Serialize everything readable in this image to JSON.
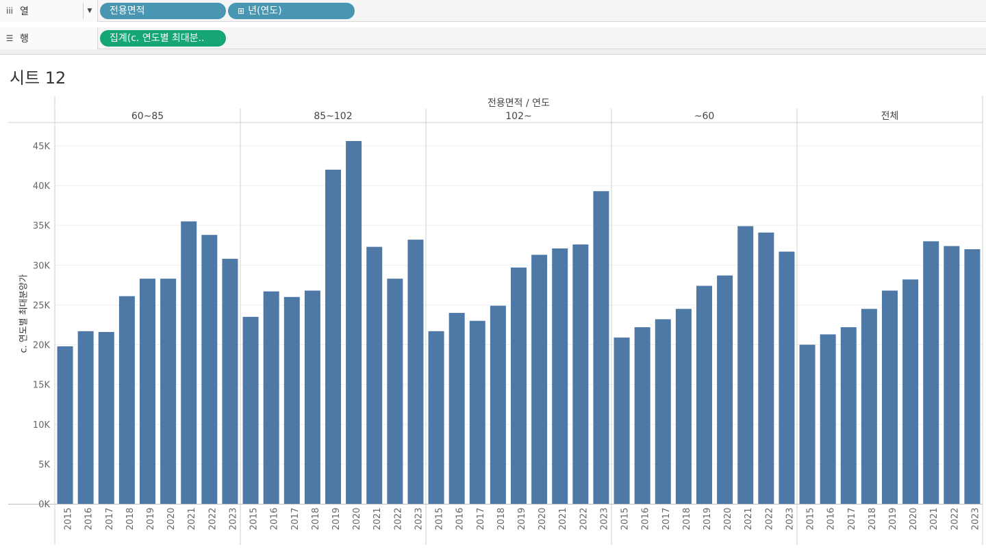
{
  "shelves": {
    "columns": {
      "label": "열",
      "icon": "columns-icon",
      "pills": [
        "전용면적",
        "년(연도)"
      ]
    },
    "rows": {
      "label": "행",
      "icon": "rows-list-icon",
      "pills": [
        "집계(c. 연도별 최대분.."
      ]
    }
  },
  "sheet_title": "시트 12",
  "colors": {
    "bar": "#4e79a7",
    "pill_dimension": "#4996b2",
    "pill_measure": "#16a576"
  },
  "chart_data": {
    "type": "bar",
    "title": "시트 12",
    "column_header": "전용면적 / 연도",
    "ylabel": "c. 연도별 최대분양가",
    "ylim": [
      0,
      47500
    ],
    "yticks": [
      0,
      5000,
      10000,
      15000,
      20000,
      25000,
      30000,
      35000,
      40000,
      45000
    ],
    "ytick_labels": [
      "0K",
      "5K",
      "10K",
      "15K",
      "20K",
      "25K",
      "30K",
      "35K",
      "40K",
      "45K"
    ],
    "categories": [
      "2015",
      "2016",
      "2017",
      "2018",
      "2019",
      "2020",
      "2021",
      "2022",
      "2023"
    ],
    "grid": true,
    "panels": [
      {
        "name": "60~85",
        "values": [
          19800,
          21700,
          21600,
          26100,
          28300,
          28300,
          35500,
          33800,
          30800
        ]
      },
      {
        "name": "85~102",
        "values": [
          23500,
          26700,
          26000,
          26800,
          42000,
          45600,
          32300,
          28300,
          33200
        ]
      },
      {
        "name": "102~",
        "values": [
          21700,
          24000,
          23000,
          24900,
          29700,
          31300,
          32100,
          32600,
          39300
        ]
      },
      {
        "name": "~60",
        "values": [
          20900,
          22200,
          23200,
          24500,
          27400,
          28700,
          34900,
          34100,
          31700
        ]
      },
      {
        "name": "전체",
        "values": [
          20000,
          21300,
          22200,
          24500,
          26800,
          28200,
          33000,
          32400,
          32000
        ]
      }
    ]
  }
}
